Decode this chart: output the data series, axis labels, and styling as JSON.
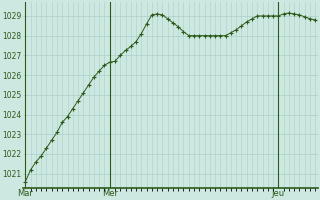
{
  "background_color": "#cce8e0",
  "plot_bg_color": "#cce8e0",
  "grid_color": "#aacfc8",
  "line_color": "#2d5a1b",
  "marker_color": "#2d5a1b",
  "axis_color": "#2d5a1b",
  "ylim": [
    1020.3,
    1029.7
  ],
  "yticks": [
    1021,
    1022,
    1023,
    1024,
    1025,
    1026,
    1027,
    1028,
    1029
  ],
  "day_labels": [
    "Mar",
    "Mer",
    "Jeu"
  ],
  "vline_positions": [
    0,
    16,
    48
  ],
  "pressure_values": [
    1020.6,
    1021.2,
    1021.6,
    1021.9,
    1022.3,
    1022.7,
    1023.1,
    1023.6,
    1023.9,
    1024.3,
    1024.7,
    1025.1,
    1025.5,
    1025.9,
    1026.2,
    1026.5,
    1026.65,
    1026.7,
    1027.0,
    1027.25,
    1027.45,
    1027.7,
    1028.1,
    1028.6,
    1029.05,
    1029.1,
    1029.05,
    1028.85,
    1028.65,
    1028.45,
    1028.2,
    1028.0,
    1028.0,
    1028.0,
    1028.0,
    1028.0,
    1028.0,
    1028.0,
    1028.0,
    1028.15,
    1028.3,
    1028.5,
    1028.7,
    1028.85,
    1029.0,
    1029.0,
    1029.0,
    1029.0,
    1029.0,
    1029.1,
    1029.15,
    1029.1,
    1029.05,
    1028.95,
    1028.85,
    1028.8
  ],
  "ylabel_fontsize": 5.5,
  "xlabel_fontsize": 6.0,
  "tick_color": "#2d5a1b"
}
